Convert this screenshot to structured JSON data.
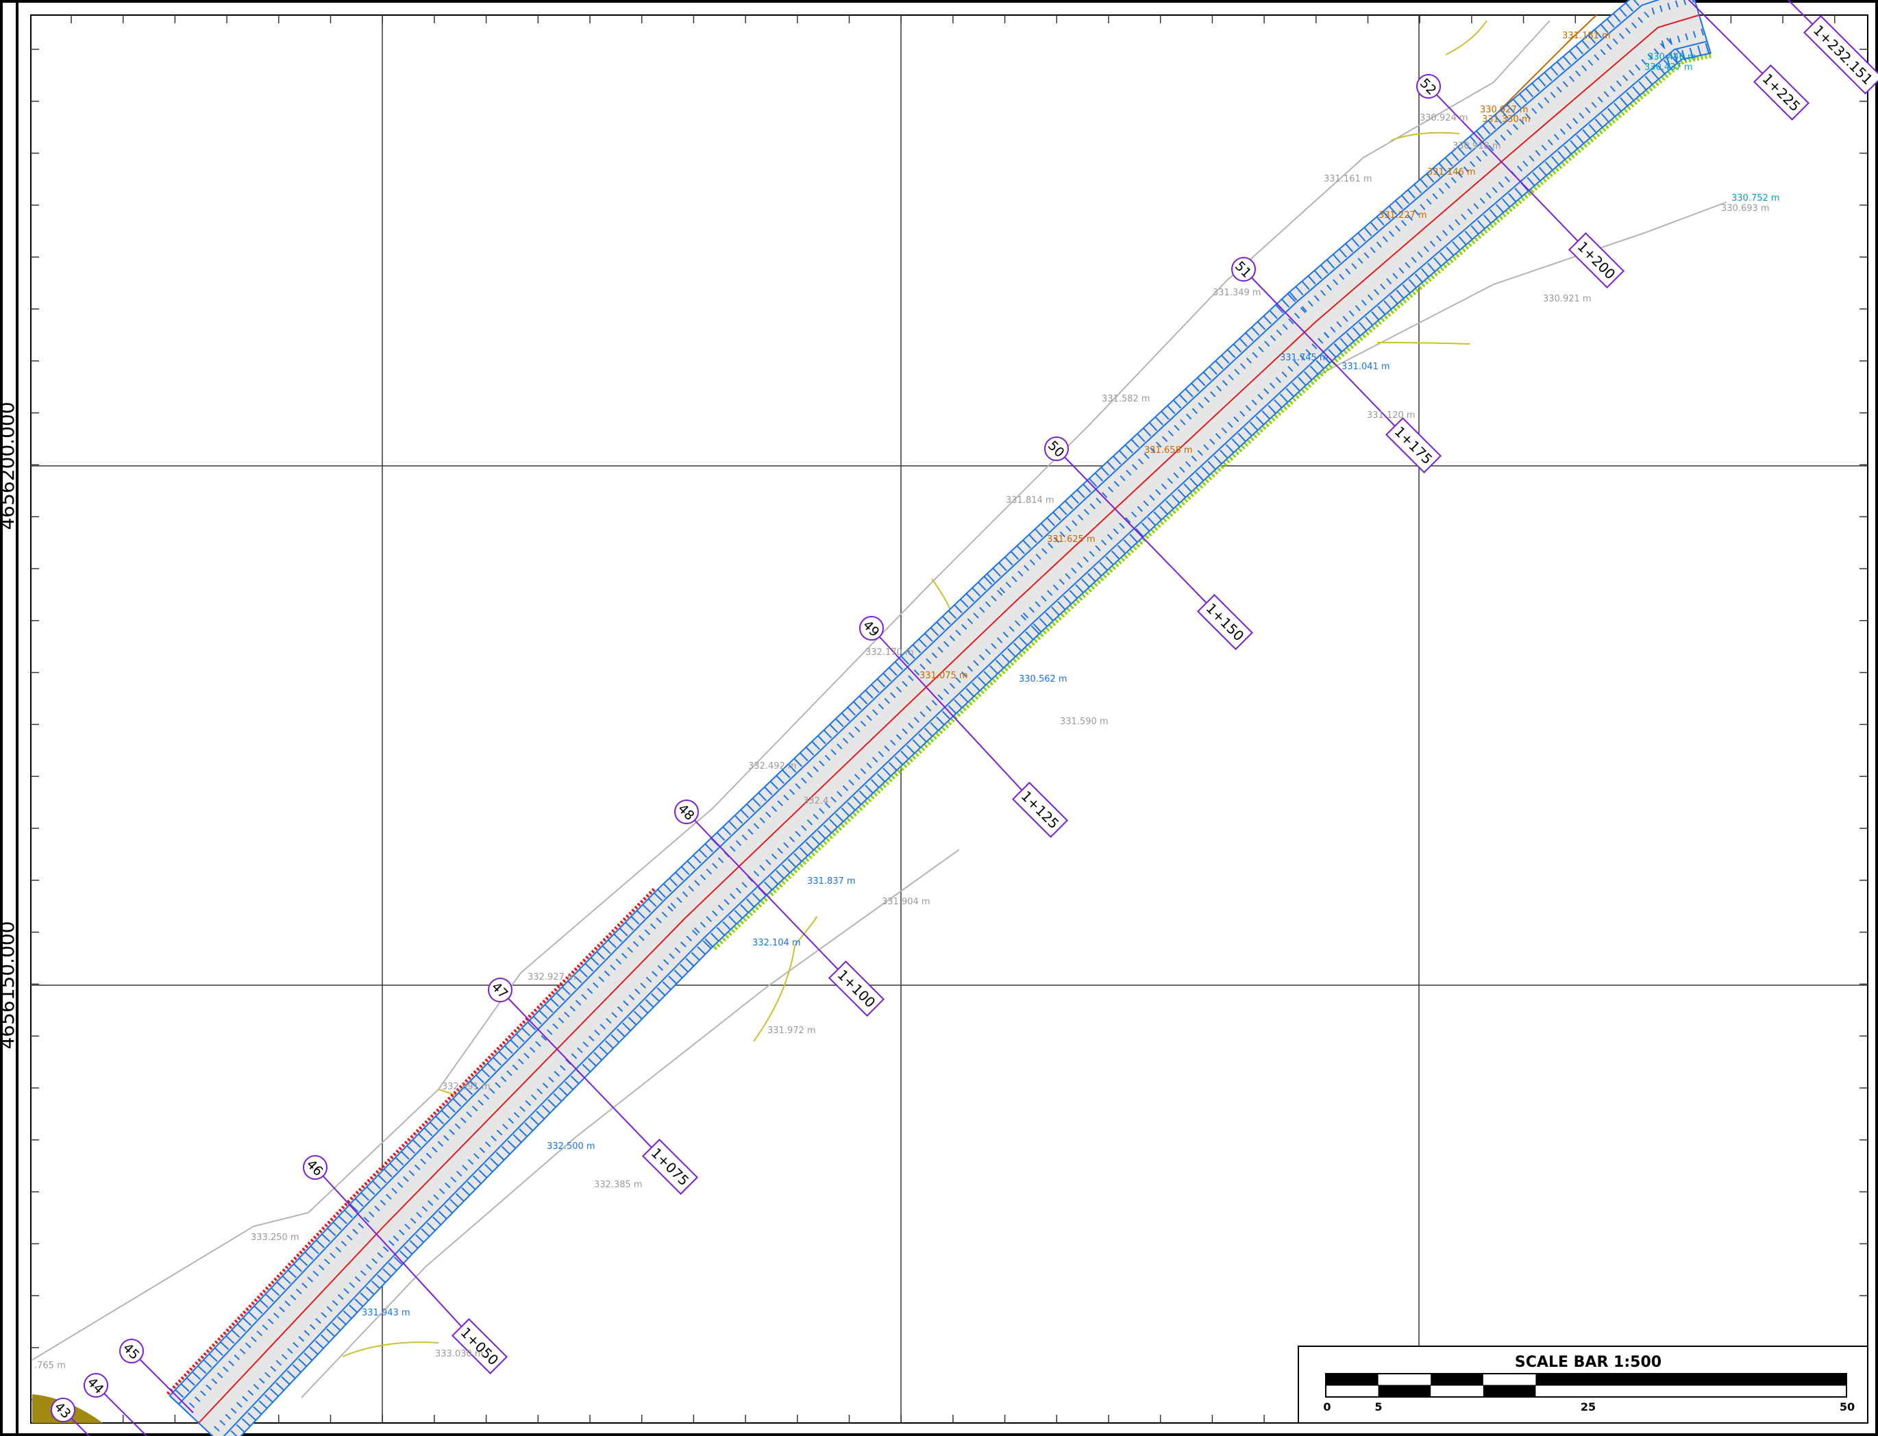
{
  "map": {
    "grid_labels": {
      "north_upper": "4656200.000",
      "north_lower": "4656150.000"
    },
    "scale_bar": {
      "title": "SCALE BAR 1:500",
      "ticks": [
        "0",
        "5",
        "25",
        "50"
      ]
    },
    "colors": {
      "frame": "#000000",
      "grid": "#333333",
      "section": "#7a1fd6",
      "corridor_fill": "#e6e6e6",
      "corridor_edge": "#1a73e8",
      "centerline": "#e31a1c",
      "breakline_orange": "#c26a00",
      "contour_gray": "#b4b4b4",
      "contour_yellow": "#cdbf2e",
      "green_edge": "#8fd400",
      "olive": "#a08a10",
      "elev_gray": "#9a9a9a",
      "elev_blue": "#1a73e8",
      "elev_orange": "#c26a00",
      "elev_cyan": "#00a0c8"
    },
    "sections": [
      {
        "num": "43",
        "station": ""
      },
      {
        "num": "44",
        "station": ""
      },
      {
        "num": "45",
        "station": ""
      },
      {
        "num": "46",
        "station": "1+050"
      },
      {
        "num": "47",
        "station": "1+075"
      },
      {
        "num": "48",
        "station": "1+100"
      },
      {
        "num": "49",
        "station": "1+125"
      },
      {
        "num": "50",
        "station": "1+150"
      },
      {
        "num": "51",
        "station": "1+175"
      },
      {
        "num": "52",
        "station": "1+200"
      },
      {
        "num": "",
        "station": "1+225"
      },
      {
        "num": "",
        "station": "1+232.151"
      }
    ],
    "elev_gray": [
      "333.250 m",
      "332.991 m",
      "332.927 m",
      "332.492 m",
      "332.385 m",
      "333.030 m",
      "331.972 m",
      "331.904 m",
      "331.590 m",
      "332.170 m",
      "331.814 m",
      "331.582 m",
      "331.349 m",
      "331.161 m",
      "330.924 m",
      "330.918 m",
      "330.921 m",
      "330.693 m",
      "331.120 m",
      ".765 m",
      "332.4"
    ],
    "elev_blue": [
      "332.500 m",
      "331.943 m",
      "332.104 m",
      "331.837 m",
      "330.562 m",
      "331.041 m",
      "331.745 m"
    ],
    "elev_orange": [
      "331.658 m",
      "331.625 m",
      "331.227 m",
      "331.146 m",
      "330.927 m",
      "331.330 m",
      "331.181 m",
      "331.075 m"
    ],
    "elev_cyan": [
      "330.752 m",
      "330.446 m",
      "330.437 m"
    ]
  }
}
